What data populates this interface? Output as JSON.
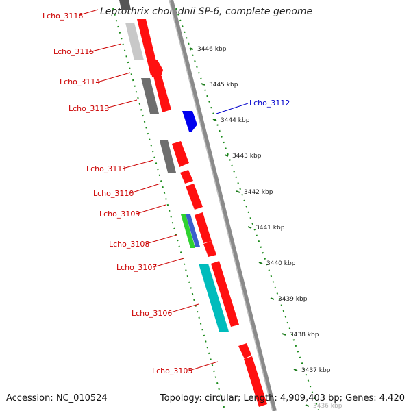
{
  "title": "Leptothrix cholodnii SP-6, complete genome",
  "footer": {
    "accession": "Accession: NC_010524",
    "summary": "Topology: circular; Length: 4,909,403 bp; Genes: 4,420"
  },
  "colors": {
    "backbone": "#909090",
    "forward_gene": "#ff0000",
    "tick": "#1a7a1a",
    "label_red": "#cc0000",
    "label_blue": "#0000cc"
  },
  "ticks": [
    {
      "label": "3446 kbp"
    },
    {
      "label": "3445 kbp"
    },
    {
      "label": "3444 kbp"
    },
    {
      "label": "3443 kbp"
    },
    {
      "label": "3442 kbp"
    },
    {
      "label": "3441 kbp"
    },
    {
      "label": "3440 kbp"
    },
    {
      "label": "3439 kbp"
    },
    {
      "label": "3438 kbp"
    },
    {
      "label": "3437 kbp"
    },
    {
      "label": "3436 kbp"
    }
  ],
  "gene_labels": [
    {
      "label": "Lcho_3116"
    },
    {
      "label": "Lcho_3115"
    },
    {
      "label": "Lcho_3114"
    },
    {
      "label": "Lcho_3113"
    },
    {
      "label": "Lcho_3111"
    },
    {
      "label": "Lcho_3110"
    },
    {
      "label": "Lcho_3109"
    },
    {
      "label": "Lcho_3108"
    },
    {
      "label": "Lcho_3107"
    },
    {
      "label": "Lcho_3106"
    },
    {
      "label": "Lcho_3105"
    },
    {
      "label": "Lcho_3112"
    }
  ]
}
